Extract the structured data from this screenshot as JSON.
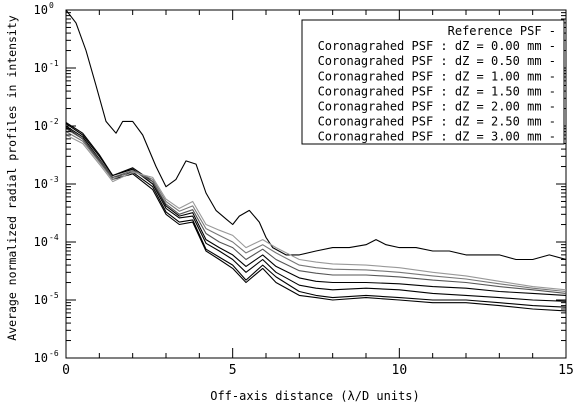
{
  "chart_data": {
    "type": "line",
    "xlabel": "Off-axis distance (λ/D units)",
    "ylabel": "Average normalized radial profiles in intensity",
    "xlim": [
      0,
      15
    ],
    "ylim": [
      1e-06,
      1
    ],
    "yscale": "log",
    "grid": false,
    "legend_position": "top-right",
    "x_ticks": [
      0,
      5,
      10,
      15
    ],
    "x_tick_labels": [
      "0",
      "5",
      "10",
      "15"
    ],
    "y_ticks": [
      1e-06,
      1e-05,
      0.0001,
      0.001,
      0.01,
      0.1,
      1
    ],
    "y_tick_labels": [
      {
        "base": "10",
        "exp": "-6"
      },
      {
        "base": "10",
        "exp": "-5"
      },
      {
        "base": "10",
        "exp": "-4"
      },
      {
        "base": "10",
        "exp": "-3"
      },
      {
        "base": "10",
        "exp": "-2"
      },
      {
        "base": "10",
        "exp": "-1"
      },
      {
        "base": "10",
        "exp": "0"
      }
    ],
    "legend": [
      "Reference PSF -",
      "Coronagrahed PSF : dZ = 0.00 mm -",
      "Coronagrahed PSF : dZ = 0.50 mm -",
      "Coronagrahed PSF : dZ = 1.00 mm -",
      "Coronagrahed PSF : dZ = 1.50 mm -",
      "Coronagrahed PSF : dZ = 2.00 mm -",
      "Coronagrahed PSF : dZ = 2.50 mm -",
      "Coronagrahed PSF : dZ = 3.00 mm -"
    ],
    "series": [
      {
        "name": "Reference PSF",
        "color": "#000000",
        "x": [
          0,
          0.3,
          0.6,
          0.9,
          1.2,
          1.5,
          1.7,
          2.0,
          2.3,
          2.7,
          3.0,
          3.3,
          3.6,
          3.9,
          4.2,
          4.5,
          4.8,
          5.0,
          5.2,
          5.5,
          5.8,
          6.0,
          6.2,
          6.6,
          7.0,
          7.5,
          8.0,
          8.5,
          9.0,
          9.3,
          9.6,
          10.0,
          10.5,
          11.0,
          11.5,
          12.0,
          12.5,
          13.0,
          13.5,
          14.0,
          14.5,
          15.0
        ],
        "y": [
          1.0,
          0.6,
          0.2,
          0.05,
          0.012,
          0.0075,
          0.012,
          0.012,
          0.007,
          0.002,
          0.0009,
          0.0012,
          0.0025,
          0.0022,
          0.0007,
          0.00035,
          0.00025,
          0.0002,
          0.00028,
          0.00035,
          0.00022,
          0.00012,
          8e-05,
          6e-05,
          6e-05,
          7e-05,
          8e-05,
          8e-05,
          9e-05,
          0.00011,
          9e-05,
          8e-05,
          8e-05,
          7e-05,
          7e-05,
          6e-05,
          6e-05,
          6e-05,
          5e-05,
          5e-05,
          6e-05,
          5e-05
        ]
      },
      {
        "name": "Coronagrahed PSF : dZ = 0.00 mm",
        "color": "#000000",
        "x": [
          0,
          0.5,
          1.0,
          1.4,
          2.0,
          2.6,
          3.0,
          3.4,
          3.8,
          4.2,
          4.6,
          5.0,
          5.4,
          5.9,
          6.3,
          7.0,
          7.5,
          8.0,
          9.0,
          10.0,
          11.0,
          12.0,
          13.0,
          14.0,
          15.0
        ],
        "y": [
          0.0095,
          0.006,
          0.0025,
          0.0012,
          0.0015,
          0.0008,
          0.0003,
          0.0002,
          0.00022,
          7e-05,
          5e-05,
          3.5e-05,
          2e-05,
          3.5e-05,
          2e-05,
          1.2e-05,
          1.1e-05,
          1e-05,
          1.1e-05,
          1e-05,
          9e-06,
          9e-06,
          8e-06,
          7e-06,
          6.5e-06
        ]
      },
      {
        "name": "Coronagrahed PSF : dZ = 0.50 mm",
        "color": "#000000",
        "x": [
          0,
          0.5,
          1.0,
          1.4,
          2.0,
          2.6,
          3.0,
          3.4,
          3.8,
          4.2,
          4.6,
          5.0,
          5.4,
          5.9,
          6.3,
          7.0,
          7.5,
          8.0,
          9.0,
          10.0,
          11.0,
          12.0,
          13.0,
          14.0,
          15.0
        ],
        "y": [
          0.01,
          0.0065,
          0.0027,
          0.0013,
          0.0016,
          0.0009,
          0.00033,
          0.00022,
          0.00024,
          7.5e-05,
          5.5e-05,
          4e-05,
          2.2e-05,
          4e-05,
          2.5e-05,
          1.4e-05,
          1.2e-05,
          1.1e-05,
          1.2e-05,
          1.1e-05,
          1e-05,
          1e-05,
          9e-06,
          8e-06,
          7.5e-06
        ]
      },
      {
        "name": "Coronagrahed PSF : dZ = 1.00 mm",
        "color": "#000000",
        "x": [
          0,
          0.5,
          1.0,
          1.4,
          2.0,
          2.6,
          3.0,
          3.4,
          3.8,
          4.2,
          4.6,
          5.0,
          5.4,
          5.9,
          6.3,
          7.0,
          7.5,
          8.0,
          9.0,
          10.0,
          11.0,
          12.0,
          13.0,
          14.0,
          15.0
        ],
        "y": [
          0.011,
          0.007,
          0.003,
          0.0014,
          0.0018,
          0.001,
          0.00038,
          0.00026,
          0.00028,
          9.5e-05,
          7e-05,
          5e-05,
          3e-05,
          5e-05,
          3e-05,
          1.8e-05,
          1.6e-05,
          1.5e-05,
          1.6e-05,
          1.5e-05,
          1.3e-05,
          1.2e-05,
          1.1e-05,
          1e-05,
          9.5e-06
        ]
      },
      {
        "name": "Coronagrahed PSF : dZ = 1.50 mm",
        "color": "#000000",
        "x": [
          0,
          0.5,
          1.0,
          1.4,
          2.0,
          2.6,
          3.0,
          3.4,
          3.8,
          4.2,
          4.6,
          5.0,
          5.4,
          5.9,
          6.3,
          7.0,
          7.5,
          8.0,
          9.0,
          10.0,
          11.0,
          12.0,
          13.0,
          14.0,
          15.0
        ],
        "y": [
          0.0115,
          0.0075,
          0.0032,
          0.0014,
          0.0019,
          0.0011,
          0.00042,
          0.00028,
          0.00032,
          0.00011,
          8e-05,
          6e-05,
          3.8e-05,
          6e-05,
          3.8e-05,
          2.4e-05,
          2.1e-05,
          2e-05,
          2e-05,
          1.9e-05,
          1.7e-05,
          1.6e-05,
          1.4e-05,
          1.3e-05,
          1.2e-05
        ]
      },
      {
        "name": "Coronagrahed PSF : dZ = 2.00 mm",
        "color": "#555555",
        "x": [
          0,
          0.5,
          1.0,
          1.4,
          2.0,
          2.6,
          3.0,
          3.4,
          3.8,
          4.2,
          4.6,
          5.0,
          5.4,
          5.9,
          6.3,
          7.0,
          7.5,
          8.0,
          9.0,
          10.0,
          11.0,
          12.0,
          13.0,
          14.0,
          15.0
        ],
        "y": [
          0.009,
          0.006,
          0.0026,
          0.0013,
          0.0017,
          0.0011,
          0.00045,
          0.0003,
          0.00036,
          0.00014,
          0.0001,
          8e-05,
          5e-05,
          7.5e-05,
          5e-05,
          3.2e-05,
          2.9e-05,
          2.7e-05,
          2.7e-05,
          2.5e-05,
          2.2e-05,
          2e-05,
          1.7e-05,
          1.5e-05,
          1.3e-05
        ]
      },
      {
        "name": "Coronagrahed PSF : dZ = 2.50 mm",
        "color": "#777777",
        "x": [
          0,
          0.5,
          1.0,
          1.4,
          2.0,
          2.6,
          3.0,
          3.4,
          3.8,
          4.2,
          4.6,
          5.0,
          5.4,
          5.9,
          6.3,
          7.0,
          7.5,
          8.0,
          9.0,
          10.0,
          11.0,
          12.0,
          13.0,
          14.0,
          15.0
        ],
        "y": [
          0.008,
          0.0055,
          0.0024,
          0.0012,
          0.0017,
          0.0012,
          0.0005,
          0.00034,
          0.00042,
          0.00017,
          0.00013,
          0.0001,
          6.5e-05,
          9e-05,
          6.5e-05,
          4e-05,
          3.6e-05,
          3.4e-05,
          3.3e-05,
          3e-05,
          2.6e-05,
          2.3e-05,
          1.9e-05,
          1.6e-05,
          1.4e-05
        ]
      },
      {
        "name": "Coronagrahed PSF : dZ = 3.00 mm",
        "color": "#999999",
        "x": [
          0,
          0.5,
          1.0,
          1.4,
          2.0,
          2.6,
          3.0,
          3.4,
          3.8,
          4.2,
          4.6,
          5.0,
          5.4,
          5.9,
          6.3,
          7.0,
          7.5,
          8.0,
          9.0,
          10.0,
          11.0,
          12.0,
          13.0,
          14.0,
          15.0
        ],
        "y": [
          0.007,
          0.005,
          0.0022,
          0.0011,
          0.0016,
          0.0013,
          0.00055,
          0.00038,
          0.0005,
          0.0002,
          0.00016,
          0.00013,
          8e-05,
          0.00011,
          8e-05,
          5e-05,
          4.5e-05,
          4.2e-05,
          4e-05,
          3.6e-05,
          3e-05,
          2.6e-05,
          2.1e-05,
          1.7e-05,
          1.5e-05
        ]
      }
    ]
  }
}
